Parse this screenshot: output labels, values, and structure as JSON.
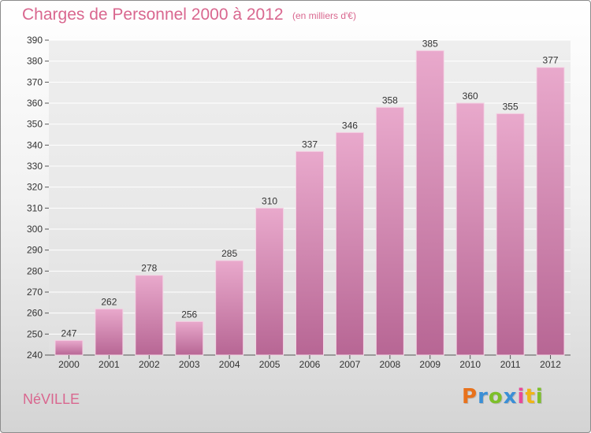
{
  "title": "Charges de Personnel 2000 à 2012",
  "subtitle": "(en milliers d'€)",
  "town": "NéVILLE",
  "logo": {
    "letters": [
      "P",
      "r",
      "o",
      "x",
      "i",
      "t",
      "i"
    ],
    "colors": [
      "#e8721c",
      "#3a8fd6",
      "#7dbf2a",
      "#3a8fd6",
      "#e84a9a",
      "#f0b418",
      "#7dbf2a"
    ]
  },
  "colors": {
    "bar_top": "#e9a9cc",
    "bar_bottom": "#b76694",
    "text": "#d9678f",
    "grid": "#ffffff"
  },
  "chart_data": {
    "type": "bar",
    "categories": [
      "2000",
      "2001",
      "2002",
      "2003",
      "2004",
      "2005",
      "2006",
      "2007",
      "2008",
      "2009",
      "2010",
      "2011",
      "2012"
    ],
    "values": [
      247,
      262,
      278,
      256,
      285,
      310,
      337,
      346,
      358,
      385,
      360,
      355,
      377
    ],
    "ylim": [
      240,
      390
    ],
    "yticks": [
      240,
      250,
      260,
      270,
      280,
      290,
      300,
      310,
      320,
      330,
      340,
      350,
      360,
      370,
      380,
      390
    ],
    "grid": true
  }
}
